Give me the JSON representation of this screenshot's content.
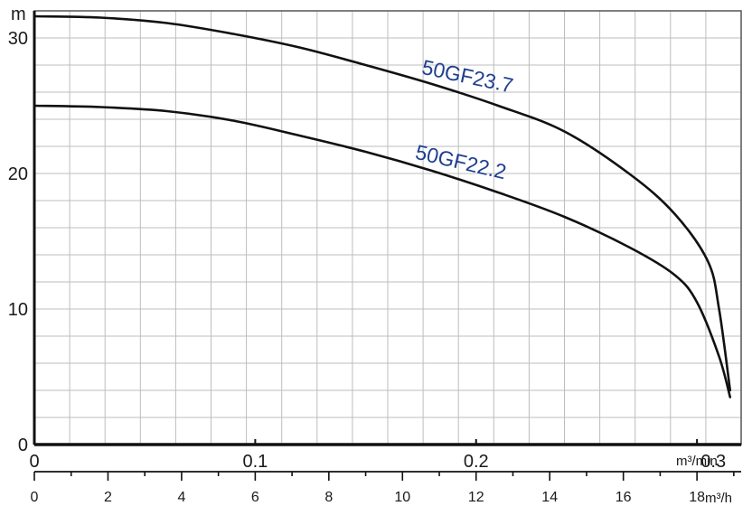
{
  "chart_data": {
    "type": "line",
    "title": "",
    "ylabel": "m",
    "ylim": [
      0,
      32
    ],
    "yticks": [
      0,
      10,
      20,
      30
    ],
    "x_primary": {
      "unit": "m³/min",
      "ticks": [
        0,
        0.1,
        0.2,
        0.3
      ],
      "tick_labels": [
        "0",
        "0.1",
        "0.2",
        "0.3"
      ],
      "lim": [
        0,
        0.32
      ]
    },
    "x_secondary": {
      "unit": "m³/h",
      "ticks": [
        0,
        2,
        4,
        6,
        8,
        10,
        12,
        14,
        16,
        18
      ],
      "tick_labels": [
        "0",
        "2",
        "4",
        "6",
        "8",
        "10",
        "12",
        "14",
        "16",
        "18"
      ]
    },
    "grid": true,
    "series": [
      {
        "name": "50GF23.7",
        "x": [
          0,
          0.03,
          0.06,
          0.09,
          0.12,
          0.15,
          0.18,
          0.21,
          0.24,
          0.27,
          0.29,
          0.305,
          0.31,
          0.315
        ],
        "y": [
          31.6,
          31.5,
          31.1,
          30.3,
          29.3,
          28.0,
          26.6,
          25.0,
          23.1,
          19.9,
          17.0,
          13.5,
          10.0,
          4.0
        ],
        "color": "#111111"
      },
      {
        "name": "50GF22.2",
        "x": [
          0,
          0.03,
          0.06,
          0.09,
          0.12,
          0.15,
          0.18,
          0.21,
          0.24,
          0.27,
          0.29,
          0.3,
          0.31,
          0.315
        ],
        "y": [
          25.0,
          24.9,
          24.6,
          23.9,
          22.8,
          21.6,
          20.2,
          18.6,
          16.8,
          14.5,
          12.5,
          10.5,
          6.5,
          3.5
        ],
        "color": "#111111"
      }
    ],
    "label_color": "#1f3f8f"
  }
}
